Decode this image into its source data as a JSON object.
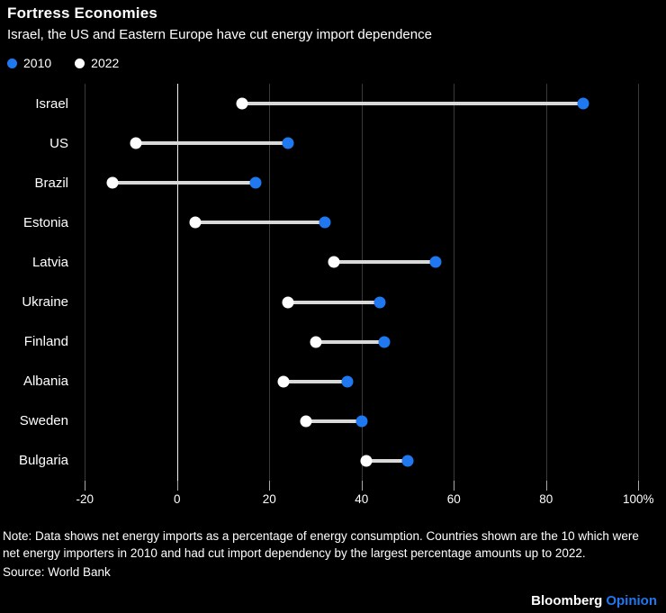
{
  "header": {
    "title": "Fortress Economies",
    "subtitle": "Israel, the US and Eastern Europe have cut energy import dependence"
  },
  "legend": [
    {
      "label": "2010",
      "color": "#1f78f0"
    },
    {
      "label": "2022",
      "color": "#ffffff"
    }
  ],
  "chart_data": {
    "type": "dumbbell",
    "orientation": "horizontal",
    "unit": "%",
    "categories": [
      "Israel",
      "US",
      "Brazil",
      "Estonia",
      "Latvia",
      "Ukraine",
      "Finland",
      "Albania",
      "Sweden",
      "Bulgaria"
    ],
    "series": [
      {
        "name": "2010",
        "color": "#1f78f0",
        "values": [
          88,
          24,
          17,
          32,
          56,
          44,
          45,
          37,
          40,
          50
        ]
      },
      {
        "name": "2022",
        "color": "#ffffff",
        "values": [
          14,
          -9,
          -14,
          4,
          34,
          24,
          30,
          23,
          28,
          41
        ]
      }
    ],
    "xlim": [
      -22,
      106
    ],
    "xticks": [
      -20,
      0,
      20,
      40,
      60,
      80,
      100
    ],
    "xtick_labels": [
      "-20",
      "0",
      "20",
      "40",
      "60",
      "80",
      "100%"
    ],
    "grid": "vertical",
    "zero_line": true,
    "connector_color": "#d9d9d9",
    "gridline_color": "#3a3a3a",
    "zero_line_color": "#f2f2f2"
  },
  "footer": {
    "note": "Note: Data shows net energy imports as a percentage of energy consumption. Countries shown are the 10 which were net energy importers in 2010 and had cut import dependency by the largest percentage amounts up to 2022.",
    "source": "Source: World Bank",
    "brand": "Bloomberg",
    "brand_suffix": "Opinion",
    "brand_suffix_color": "#1f78f0"
  }
}
